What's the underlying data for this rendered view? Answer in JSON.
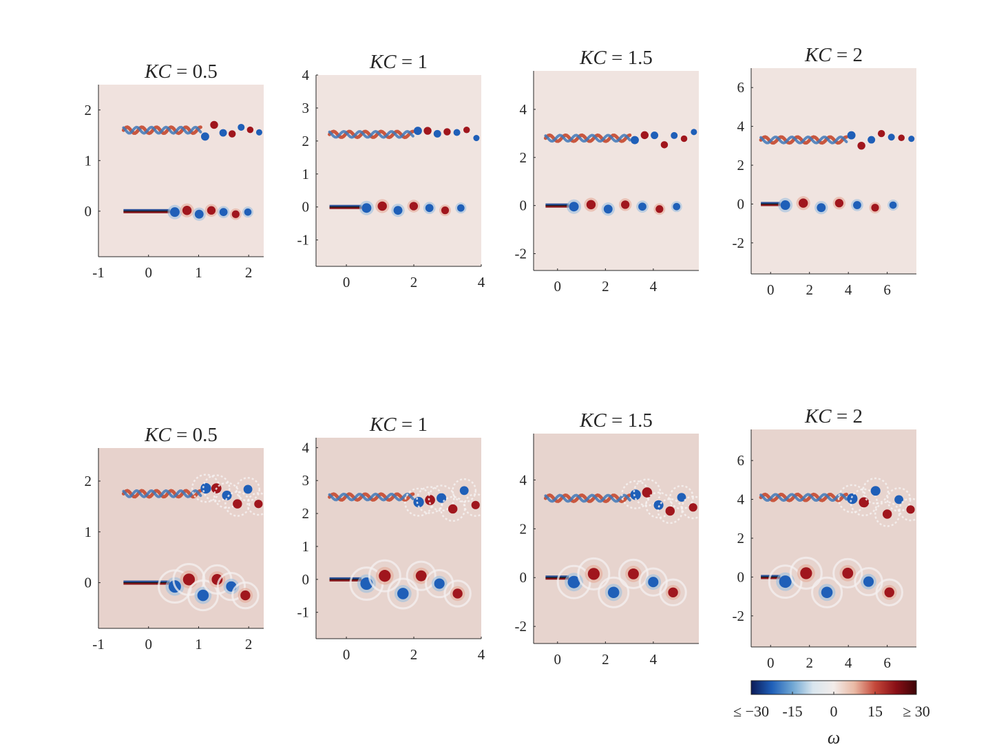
{
  "chart_data": {
    "type": "heatmap",
    "variable": "vorticity",
    "colorbar": {
      "label": "ω",
      "range": [
        -30,
        30
      ],
      "ticks": [
        -30,
        -15,
        0,
        15,
        30
      ],
      "tick_labels": [
        "≤ −30",
        "-15",
        "0",
        "15",
        "≥ 30"
      ],
      "colormap": [
        "#0b1a57",
        "#1f5fb8",
        "#6fa6d3",
        "#d9e6ee",
        "#f2ecea",
        "#e9b9a4",
        "#c4483a",
        "#8a0f16",
        "#3d0508"
      ]
    },
    "panels": [
      {
        "row": 1,
        "title": "KC = 0.5",
        "title_parts": [
          "KC",
          " = 0.5"
        ],
        "kc": 0.5,
        "xlim": [
          -1,
          2.3
        ],
        "ylim": [
          -0.9,
          2.5
        ],
        "xticks": [
          -1,
          0,
          1,
          2
        ],
        "yticks": [
          0,
          1,
          2
        ],
        "xtick_labels": [
          "-1",
          "0",
          "1",
          "2"
        ],
        "ytick_labels": [
          "0",
          "1",
          "2"
        ],
        "background": "#f0e2de"
      },
      {
        "row": 1,
        "title": "KC = 1",
        "title_parts": [
          "KC",
          " = 1"
        ],
        "kc": 1,
        "xlim": [
          -0.9,
          4.0
        ],
        "ylim": [
          -1.8,
          4.0
        ],
        "xticks": [
          0,
          2,
          4
        ],
        "yticks": [
          -1,
          0,
          1,
          2,
          3,
          4
        ],
        "xtick_labels": [
          "0",
          "2",
          "4"
        ],
        "ytick_labels": [
          "-1",
          "0",
          "1",
          "2",
          "3",
          "4"
        ],
        "background": "#f0e4e0"
      },
      {
        "row": 1,
        "title": "KC = 1.5",
        "title_parts": [
          "KC",
          " = 1.5"
        ],
        "kc": 1.5,
        "xlim": [
          -1.0,
          5.9
        ],
        "ylim": [
          -2.7,
          5.6
        ],
        "xticks": [
          0,
          2,
          4
        ],
        "yticks": [
          -2,
          0,
          2,
          4
        ],
        "xtick_labels": [
          "0",
          "2",
          "4"
        ],
        "ytick_labels": [
          "-2",
          "0",
          "2",
          "4"
        ],
        "background": "#f0e4e0"
      },
      {
        "row": 1,
        "title": "KC = 2",
        "title_parts": [
          "KC",
          " = 2"
        ],
        "kc": 2,
        "xlim": [
          -1.0,
          7.5
        ],
        "ylim": [
          -3.6,
          7.0
        ],
        "xticks": [
          0,
          2,
          4,
          6
        ],
        "yticks": [
          -2,
          0,
          2,
          4,
          6
        ],
        "xtick_labels": [
          "0",
          "2",
          "4",
          "6"
        ],
        "ytick_labels": [
          "-2",
          "0",
          "2",
          "4",
          "6"
        ],
        "background": "#f0e4e0"
      },
      {
        "row": 2,
        "title": "KC = 0.5",
        "title_parts": [
          "KC",
          " = 0.5"
        ],
        "kc": 0.5,
        "xlim": [
          -1,
          2.3
        ],
        "ylim": [
          -0.9,
          2.65
        ],
        "xticks": [
          -1,
          0,
          1,
          2
        ],
        "yticks": [
          0,
          1,
          2
        ],
        "xtick_labels": [
          "-1",
          "0",
          "1",
          "2"
        ],
        "ytick_labels": [
          "0",
          "1",
          "2"
        ],
        "background": "#e7d2cc"
      },
      {
        "row": 2,
        "title": "KC = 1",
        "title_parts": [
          "KC",
          " = 1"
        ],
        "kc": 1,
        "xlim": [
          -0.9,
          4.0
        ],
        "ylim": [
          -1.8,
          4.3
        ],
        "xticks": [
          0,
          2,
          4
        ],
        "yticks": [
          -1,
          0,
          1,
          2,
          3,
          4
        ],
        "xtick_labels": [
          "0",
          "2",
          "4"
        ],
        "ytick_labels": [
          "-1",
          "0",
          "1",
          "2",
          "3",
          "4"
        ],
        "background": "#e7d4ce"
      },
      {
        "row": 2,
        "title": "KC = 1.5",
        "title_parts": [
          "KC",
          " = 1.5"
        ],
        "kc": 1.5,
        "xlim": [
          -1.0,
          5.9
        ],
        "ylim": [
          -2.7,
          5.9
        ],
        "xticks": [
          0,
          2,
          4
        ],
        "yticks": [
          -2,
          0,
          2,
          4
        ],
        "xtick_labels": [
          "0",
          "2",
          "4"
        ],
        "ytick_labels": [
          "-2",
          "0",
          "2",
          "4"
        ],
        "background": "#e7d4ce"
      },
      {
        "row": 2,
        "title": "KC = 2",
        "title_parts": [
          "KC",
          " = 2"
        ],
        "kc": 2,
        "xlim": [
          -1.0,
          7.5
        ],
        "ylim": [
          -3.6,
          7.6
        ],
        "xticks": [
          0,
          2,
          4,
          6
        ],
        "yticks": [
          -2,
          0,
          2,
          4,
          6
        ],
        "xtick_labels": [
          "0",
          "2",
          "4",
          "6"
        ],
        "ytick_labels": [
          "-2",
          "0",
          "2",
          "4",
          "6"
        ],
        "background": "#e7d4ce"
      }
    ]
  }
}
